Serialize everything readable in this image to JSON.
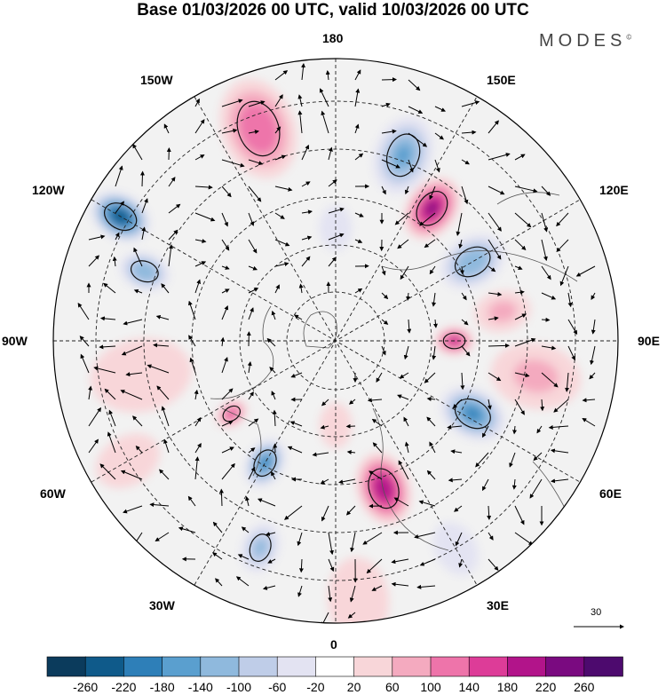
{
  "title": "Base 01/03/2026 00 UTC, valid 10/03/2026 00 UTC",
  "logo": {
    "text": "MODES",
    "mark": "©"
  },
  "longitude_labels": {
    "lon_180": "180",
    "lon_150e": "150E",
    "lon_120e": "120E",
    "lon_90e": "90E",
    "lon_60e": "60E",
    "lon_30e": "30E",
    "lon_0": "0",
    "lon_30w": "30W",
    "lon_60w": "60W",
    "lon_90w": "90W",
    "lon_120w": "120W",
    "lon_150w": "150W"
  },
  "reference_vector": {
    "label": "30"
  },
  "colorbar": {
    "labels": [
      "-260",
      "-220",
      "-180",
      "-140",
      "-100",
      "-60",
      "-20",
      "20",
      "60",
      "100",
      "140",
      "180",
      "220",
      "260"
    ],
    "colors": [
      "#0b3b5c",
      "#0f5a8a",
      "#2e7fb8",
      "#5a9fcf",
      "#8fb9dd",
      "#bfcde8",
      "#e3e3f2",
      "#ffffff",
      "#f8d6d9",
      "#f4aabf",
      "#ee74aa",
      "#dd3c98",
      "#b2148a",
      "#7a0a80",
      "#4d0a6e"
    ]
  },
  "anomalies": [
    {
      "lon": 200,
      "r": 0.8,
      "v": 130,
      "size": 0.18
    },
    {
      "lon": 160,
      "r": 0.7,
      "v": -150,
      "size": 0.14
    },
    {
      "lon": 144,
      "r": 0.58,
      "v": 230,
      "size": 0.12
    },
    {
      "lon": 120,
      "r": 0.56,
      "v": -130,
      "size": 0.12
    },
    {
      "lon": 240,
      "r": 0.88,
      "v": -250,
      "size": 0.11
    },
    {
      "lon": 250,
      "r": 0.72,
      "v": -130,
      "size": 0.09
    },
    {
      "lon": 90,
      "r": 0.42,
      "v": 190,
      "size": 0.07
    },
    {
      "lon": 62,
      "r": 0.55,
      "v": -200,
      "size": 0.12
    },
    {
      "lon": 18,
      "r": 0.55,
      "v": 210,
      "size": 0.13
    },
    {
      "lon": 330,
      "r": 0.5,
      "v": -180,
      "size": 0.09
    },
    {
      "lon": 305,
      "r": 0.45,
      "v": 150,
      "size": 0.06
    },
    {
      "lon": 340,
      "r": 0.78,
      "v": -120,
      "size": 0.09
    },
    {
      "lon": 80,
      "r": 0.72,
      "v": 60,
      "size": 0.16
    },
    {
      "lon": 280,
      "r": 0.7,
      "v": 50,
      "size": 0.18
    },
    {
      "lon": 100,
      "r": 0.6,
      "v": 70,
      "size": 0.1
    },
    {
      "lon": 5,
      "r": 0.92,
      "v": 55,
      "size": 0.15
    },
    {
      "lon": 0,
      "r": 0.3,
      "v": 40,
      "size": 0.08
    },
    {
      "lon": 180,
      "r": 0.4,
      "v": -40,
      "size": 0.08
    },
    {
      "lon": 30,
      "r": 0.85,
      "v": -50,
      "size": 0.1
    },
    {
      "lon": 300,
      "r": 0.85,
      "v": 45,
      "size": 0.12
    }
  ]
}
